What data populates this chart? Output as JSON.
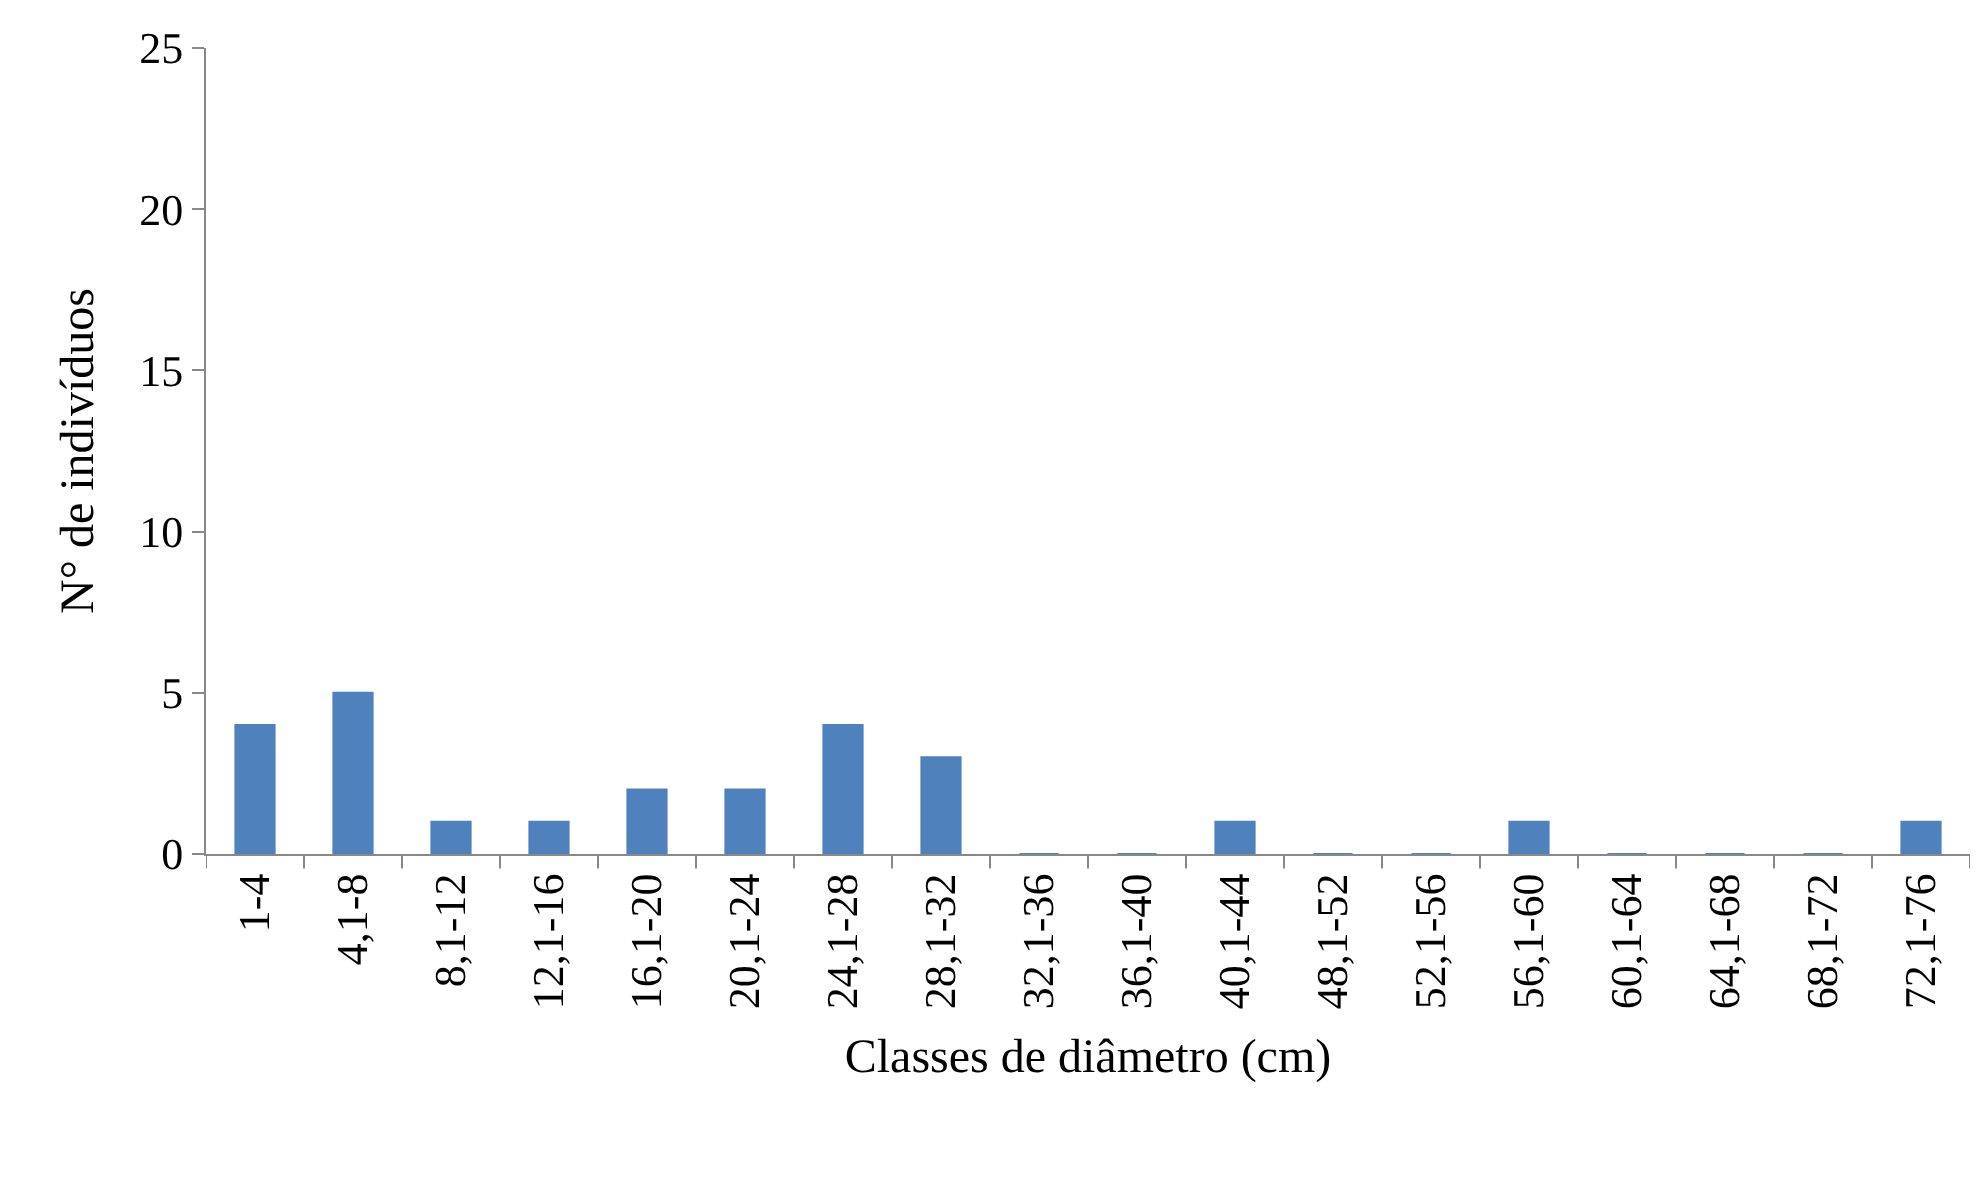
{
  "chart_data": {
    "type": "bar",
    "xlabel": "Classes de diâmetro (cm)",
    "ylabel": "N° de indivíduos",
    "categories": [
      "1-4",
      "4,1-8",
      "8,1-12",
      "12,1-16",
      "16,1-20",
      "20,1-24",
      "24,1-28",
      "28,1-32",
      "32,1-36",
      "36,1-40",
      "40,1-44",
      "48,1-52",
      "52,1-56",
      "56,1-60",
      "60,1-64",
      "64,1-68",
      "68,1-72",
      "72,1-76"
    ],
    "values": [
      4,
      5,
      1,
      1,
      2,
      2,
      4,
      3,
      0,
      0,
      1,
      0,
      0,
      1,
      0,
      0,
      0,
      1
    ],
    "color": "#4f81bd",
    "ylim": [
      0,
      25
    ],
    "yticks": [
      0,
      5,
      10,
      15,
      20,
      25
    ]
  }
}
